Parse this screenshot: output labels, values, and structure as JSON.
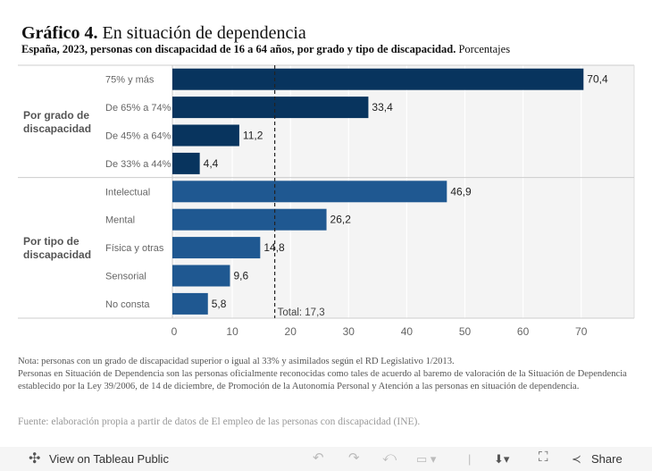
{
  "title": {
    "bold": "Gráfico 4.",
    "text": "En situación de dependencia"
  },
  "subtitle": {
    "bold": "España, 2023, personas con discapacidad de 16 a 64 años, por grado y tipo de discapacidad.",
    "text": "Porcentajes"
  },
  "chart_data": {
    "type": "bar",
    "orientation": "horizontal",
    "groups": [
      {
        "name": "Por grado de discapacidad",
        "color": "#08345e",
        "categories": [
          "75% y más",
          "De 65% a 74%",
          "De 45% a 64%",
          "De 33% a 44%"
        ],
        "values": [
          70.4,
          33.4,
          11.2,
          4.4
        ],
        "labels": [
          "70,4",
          "33,4",
          "11,2",
          "4,4"
        ]
      },
      {
        "name": "Por tipo de discapacidad",
        "color": "#1f5891",
        "categories": [
          "Intelectual",
          "Mental",
          "Física y otras",
          "Sensorial",
          "No consta"
        ],
        "values": [
          46.9,
          26.2,
          14.8,
          9.6,
          5.8
        ],
        "labels": [
          "46,9",
          "26,2",
          "14,8",
          "9,6",
          "5,8"
        ]
      }
    ],
    "reference_line": {
      "label": "Total: 17,3",
      "value": 17.3
    },
    "xlim": [
      0,
      79
    ],
    "xticks": [
      0,
      10,
      20,
      30,
      40,
      50,
      60,
      70
    ],
    "grid": true
  },
  "notes": [
    "Nota: personas con un grado de discapacidad superior o igual al 33% y asimilados según el RD Legislativo 1/2013.",
    "Personas en Situación de Dependencia son las personas oficialmente reconocidas como tales de acuerdo al baremo de valoración de la Situación de Dependencia establecido por la Ley 39/2006, de 14 de diciembre, de Promoción  de la Autonomía Personal y Atención a las personas en situación de dependencia."
  ],
  "source": "Fuente: elaboración propia a partir de datos de El empleo de las personas con discapacidad (INE).",
  "toolbar": {
    "view_label": "View on Tableau Public",
    "share_label": "Share"
  }
}
